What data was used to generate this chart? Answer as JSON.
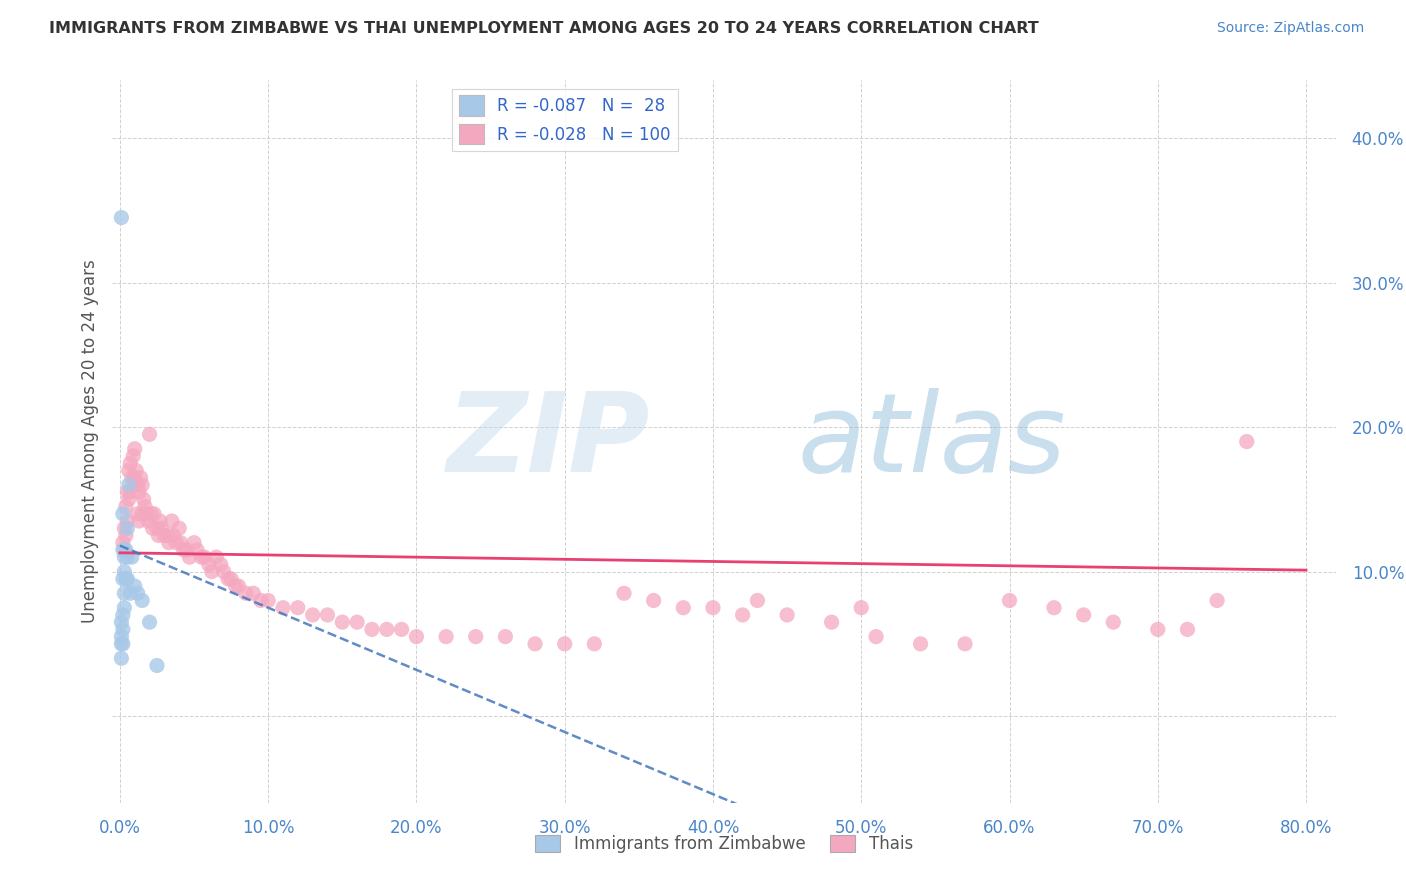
{
  "title": "IMMIGRANTS FROM ZIMBABWE VS THAI UNEMPLOYMENT AMONG AGES 20 TO 24 YEARS CORRELATION CHART",
  "source": "Source: ZipAtlas.com",
  "ylabel": "Unemployment Among Ages 20 to 24 years",
  "xlim": [
    -0.005,
    0.82
  ],
  "ylim": [
    -0.06,
    0.44
  ],
  "xticks": [
    0.0,
    0.1,
    0.2,
    0.3,
    0.4,
    0.5,
    0.6,
    0.7,
    0.8
  ],
  "yticks": [
    0.0,
    0.1,
    0.2,
    0.3,
    0.4
  ],
  "ytick_labels": [
    "",
    "10.0%",
    "20.0%",
    "30.0%",
    "40.0%"
  ],
  "xtick_labels": [
    "0.0%",
    "10.0%",
    "20.0%",
    "30.0%",
    "40.0%",
    "50.0%",
    "60.0%",
    "70.0%",
    "80.0%"
  ],
  "legend_R_zimbabwe": "-0.087",
  "legend_N_zimbabwe": "28",
  "legend_R_thais": "-0.028",
  "legend_N_thais": "100",
  "color_zimbabwe": "#a8c8e8",
  "color_thais": "#f4a8c0",
  "color_trend_zimbabwe": "#4477bb",
  "color_trend_thais": "#e84070",
  "background_color": "#ffffff",
  "grid_color": "#cccccc",
  "zimbabwe_x": [
    0.001,
    0.001,
    0.001,
    0.001,
    0.001,
    0.002,
    0.002,
    0.002,
    0.002,
    0.002,
    0.002,
    0.003,
    0.003,
    0.003,
    0.003,
    0.004,
    0.004,
    0.005,
    0.005,
    0.005,
    0.006,
    0.007,
    0.008,
    0.01,
    0.012,
    0.015,
    0.02,
    0.025
  ],
  "zimbabwe_y": [
    0.345,
    0.065,
    0.055,
    0.05,
    0.04,
    0.14,
    0.115,
    0.095,
    0.07,
    0.06,
    0.05,
    0.11,
    0.1,
    0.085,
    0.075,
    0.115,
    0.095,
    0.13,
    0.11,
    0.095,
    0.16,
    0.085,
    0.11,
    0.09,
    0.085,
    0.08,
    0.065,
    0.035
  ],
  "thais_x": [
    0.002,
    0.003,
    0.003,
    0.004,
    0.004,
    0.005,
    0.005,
    0.006,
    0.006,
    0.007,
    0.007,
    0.008,
    0.009,
    0.009,
    0.01,
    0.01,
    0.011,
    0.012,
    0.012,
    0.013,
    0.013,
    0.014,
    0.015,
    0.015,
    0.016,
    0.017,
    0.018,
    0.019,
    0.02,
    0.021,
    0.022,
    0.023,
    0.025,
    0.026,
    0.027,
    0.028,
    0.03,
    0.032,
    0.033,
    0.035,
    0.036,
    0.038,
    0.04,
    0.041,
    0.043,
    0.045,
    0.047,
    0.05,
    0.052,
    0.055,
    0.057,
    0.06,
    0.062,
    0.065,
    0.068,
    0.07,
    0.073,
    0.075,
    0.078,
    0.08,
    0.085,
    0.09,
    0.095,
    0.1,
    0.11,
    0.12,
    0.13,
    0.14,
    0.15,
    0.16,
    0.17,
    0.18,
    0.19,
    0.2,
    0.22,
    0.24,
    0.26,
    0.28,
    0.3,
    0.32,
    0.34,
    0.36,
    0.38,
    0.4,
    0.42,
    0.45,
    0.48,
    0.51,
    0.54,
    0.57,
    0.6,
    0.63,
    0.65,
    0.67,
    0.7,
    0.72,
    0.74,
    0.76,
    0.5,
    0.43
  ],
  "thais_y": [
    0.12,
    0.13,
    0.115,
    0.125,
    0.145,
    0.155,
    0.135,
    0.17,
    0.15,
    0.175,
    0.155,
    0.165,
    0.18,
    0.16,
    0.185,
    0.165,
    0.17,
    0.16,
    0.14,
    0.155,
    0.135,
    0.165,
    0.16,
    0.14,
    0.15,
    0.145,
    0.14,
    0.135,
    0.195,
    0.14,
    0.13,
    0.14,
    0.13,
    0.125,
    0.135,
    0.13,
    0.125,
    0.125,
    0.12,
    0.135,
    0.125,
    0.12,
    0.13,
    0.12,
    0.115,
    0.115,
    0.11,
    0.12,
    0.115,
    0.11,
    0.11,
    0.105,
    0.1,
    0.11,
    0.105,
    0.1,
    0.095,
    0.095,
    0.09,
    0.09,
    0.085,
    0.085,
    0.08,
    0.08,
    0.075,
    0.075,
    0.07,
    0.07,
    0.065,
    0.065,
    0.06,
    0.06,
    0.06,
    0.055,
    0.055,
    0.055,
    0.055,
    0.05,
    0.05,
    0.05,
    0.085,
    0.08,
    0.075,
    0.075,
    0.07,
    0.07,
    0.065,
    0.055,
    0.05,
    0.05,
    0.08,
    0.075,
    0.07,
    0.065,
    0.06,
    0.06,
    0.08,
    0.19,
    0.075,
    0.08
  ],
  "trend_thai_x0": 0.0,
  "trend_thai_y0": 0.113,
  "trend_thai_x1": 0.8,
  "trend_thai_y1": 0.101,
  "trend_zim_x0": 0.0,
  "trend_zim_y0": 0.118,
  "trend_zim_x1": 0.1,
  "trend_zim_y1": 0.075
}
